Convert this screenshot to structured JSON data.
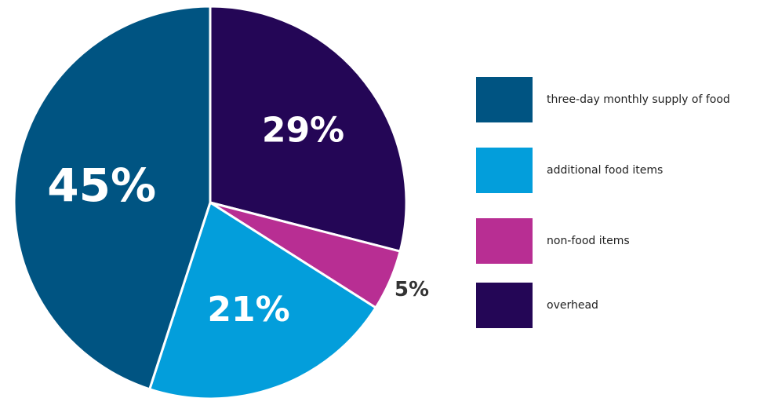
{
  "chart_data": {
    "type": "pie",
    "title": "",
    "slices": [
      {
        "label": "overhead",
        "value": 29,
        "display": "29%",
        "color": "#240656",
        "label_color": "#ffffff"
      },
      {
        "label": "non-food items",
        "value": 5,
        "display": "5%",
        "color": "#b82e93",
        "label_color": "#333333",
        "label_outside": true
      },
      {
        "label": "additional food items",
        "value": 21,
        "display": "21%",
        "color": "#039edb",
        "label_color": "#ffffff"
      },
      {
        "label": "three-day monthly supply of food",
        "value": 45,
        "display": "45%",
        "color": "#005482",
        "label_color": "#ffffff"
      }
    ],
    "legend_position": "right",
    "legend": [
      {
        "label": "three-day monthly supply of food",
        "color": "#005482"
      },
      {
        "label": "additional food items",
        "color": "#039edb"
      },
      {
        "label": "non-food items",
        "color": "#b82e93"
      },
      {
        "label": "overhead",
        "color": "#240656"
      }
    ]
  }
}
